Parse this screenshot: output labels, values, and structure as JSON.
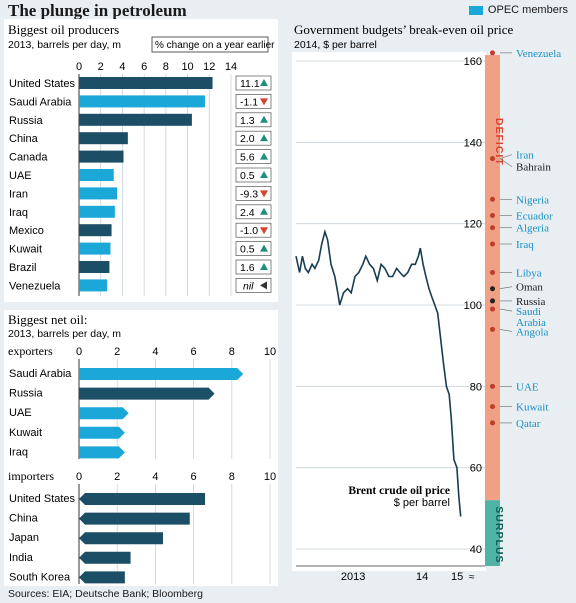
{
  "header": {
    "title": "The plunge in petroleum",
    "legend_label": "OPEC members"
  },
  "footer": {
    "sources": "Sources: EIA; Deutsche Bank; Bloomberg"
  },
  "colors": {
    "opec": "#1ba7d8",
    "non_opec": "#1c4f65",
    "deficit": "#f0a084",
    "surplus": "#4fb3a6",
    "line": "#163d52",
    "positive": "#1f8f7b",
    "negative": "#d8432f"
  },
  "chart_data": [
    {
      "type": "bar",
      "title": "Biggest oil producers",
      "subtitle": "2013, barrels per day, m",
      "change_header": "% change on a year earlier",
      "xlim": [
        0,
        14
      ],
      "ticks": [
        "0",
        "2",
        "4",
        "6",
        "8",
        "10",
        "12",
        "14"
      ],
      "categories": [
        "United States",
        "Saudi Arabia",
        "Russia",
        "China",
        "Canada",
        "UAE",
        "Iran",
        "Iraq",
        "Mexico",
        "Kuwait",
        "Brazil",
        "Venezuela"
      ],
      "values": [
        12.3,
        11.6,
        10.4,
        4.5,
        4.1,
        3.2,
        3.5,
        3.3,
        3.0,
        2.9,
        2.8,
        2.6
      ],
      "opec": [
        false,
        true,
        false,
        false,
        false,
        true,
        true,
        true,
        false,
        true,
        false,
        true
      ],
      "changes": [
        "11.1",
        "-1.1",
        "1.3",
        "2.0",
        "5.6",
        "0.5",
        "-9.3",
        "2.4",
        "-1.0",
        "0.5",
        "1.6",
        "nil"
      ],
      "change_dirs": [
        "up",
        "down",
        "up",
        "up",
        "up",
        "up",
        "down",
        "up",
        "down",
        "up",
        "up",
        "none"
      ]
    },
    {
      "type": "bar",
      "title": "Biggest net oil:",
      "subtitle": "2013, barrels per day, m",
      "groups": [
        {
          "label": "exporters",
          "ticks": [
            "0",
            "2",
            "4",
            "6",
            "8",
            "10"
          ],
          "categories": [
            "Saudi Arabia",
            "Russia",
            "UAE",
            "Kuwait",
            "Iraq"
          ],
          "values": [
            8.6,
            7.1,
            2.6,
            2.4,
            2.4
          ],
          "opec": [
            true,
            false,
            true,
            true,
            true
          ]
        },
        {
          "label": "importers",
          "ticks": [
            "0",
            "2",
            "4",
            "6",
            "8",
            "10"
          ],
          "categories": [
            "United States",
            "China",
            "Japan",
            "India",
            "South Korea"
          ],
          "values": [
            6.6,
            5.8,
            4.4,
            2.7,
            2.4
          ],
          "opec": [
            false,
            false,
            false,
            false,
            false
          ]
        }
      ],
      "xlim": [
        0,
        10
      ]
    },
    {
      "type": "line",
      "title": "Government budgets’ break-even oil price",
      "subtitle": "2014, $ per barrel",
      "ylim": [
        40,
        160
      ],
      "yticks": [
        "40",
        "60",
        "80",
        "100",
        "120",
        "140",
        "160"
      ],
      "xticks": [
        "2013",
        "14",
        "15"
      ],
      "series": [
        {
          "name": "Brent crude oil price",
          "unit": "$ per barrel",
          "x": [
            "2012-09-01",
            "2012-09-20",
            "2012-10-05",
            "2012-10-20",
            "2012-11-05",
            "2012-11-25",
            "2012-12-10",
            "2012-12-30",
            "2013-01-15",
            "2013-02-01",
            "2013-02-15",
            "2013-03-05",
            "2013-03-25",
            "2013-04-10",
            "2013-04-20",
            "2013-05-10",
            "2013-06-01",
            "2013-06-20",
            "2013-07-10",
            "2013-07-30",
            "2013-08-20",
            "2013-09-05",
            "2013-09-25",
            "2013-10-15",
            "2013-11-05",
            "2013-11-25",
            "2013-12-15",
            "2014-01-05",
            "2014-01-25",
            "2014-02-15",
            "2014-03-05",
            "2014-03-25",
            "2014-04-15",
            "2014-05-05",
            "2014-05-25",
            "2014-06-10",
            "2014-06-20",
            "2014-07-05",
            "2014-07-20",
            "2014-08-05",
            "2014-08-20",
            "2014-09-05",
            "2014-09-20",
            "2014-10-05",
            "2014-10-20",
            "2014-11-05",
            "2014-11-20",
            "2014-12-01",
            "2014-12-15",
            "2014-12-31",
            "2015-01-10",
            "2015-01-20"
          ],
          "values": [
            112,
            108,
            112,
            109,
            108,
            110,
            109,
            111,
            115,
            118,
            116,
            110,
            107,
            103,
            100,
            103,
            104,
            103,
            107,
            108,
            110,
            112,
            110,
            109,
            106,
            110,
            109,
            107,
            107,
            109,
            108,
            107,
            108,
            110,
            110,
            112,
            114,
            110,
            107,
            104,
            102,
            100,
            98,
            92,
            86,
            80,
            78,
            72,
            62,
            60,
            53,
            48
          ]
        }
      ],
      "annotations": {
        "deficit": "DEFICIT",
        "surplus": "SURPLUS",
        "surplus_below": 52
      },
      "countries": [
        {
          "name": "Venezuela",
          "value": 162,
          "opec": true
        },
        {
          "name": "Iran",
          "value": 136,
          "opec": true
        },
        {
          "name": "Bahrain",
          "value": 136,
          "opec": false
        },
        {
          "name": "Nigeria",
          "value": 126,
          "opec": true
        },
        {
          "name": "Ecuador",
          "value": 122,
          "opec": true
        },
        {
          "name": "Algeria",
          "value": 119,
          "opec": true
        },
        {
          "name": "Iraq",
          "value": 115,
          "opec": true
        },
        {
          "name": "Libya",
          "value": 108,
          "opec": true
        },
        {
          "name": "Oman",
          "value": 104,
          "opec": false
        },
        {
          "name": "Russia",
          "value": 101,
          "opec": false
        },
        {
          "name": "Saudi Arabia",
          "value": 99,
          "opec": true
        },
        {
          "name": "Angola",
          "value": 94,
          "opec": true
        },
        {
          "name": "UAE",
          "value": 80,
          "opec": true
        },
        {
          "name": "Kuwait",
          "value": 75,
          "opec": true
        },
        {
          "name": "Qatar",
          "value": 71,
          "opec": true
        }
      ]
    }
  ]
}
